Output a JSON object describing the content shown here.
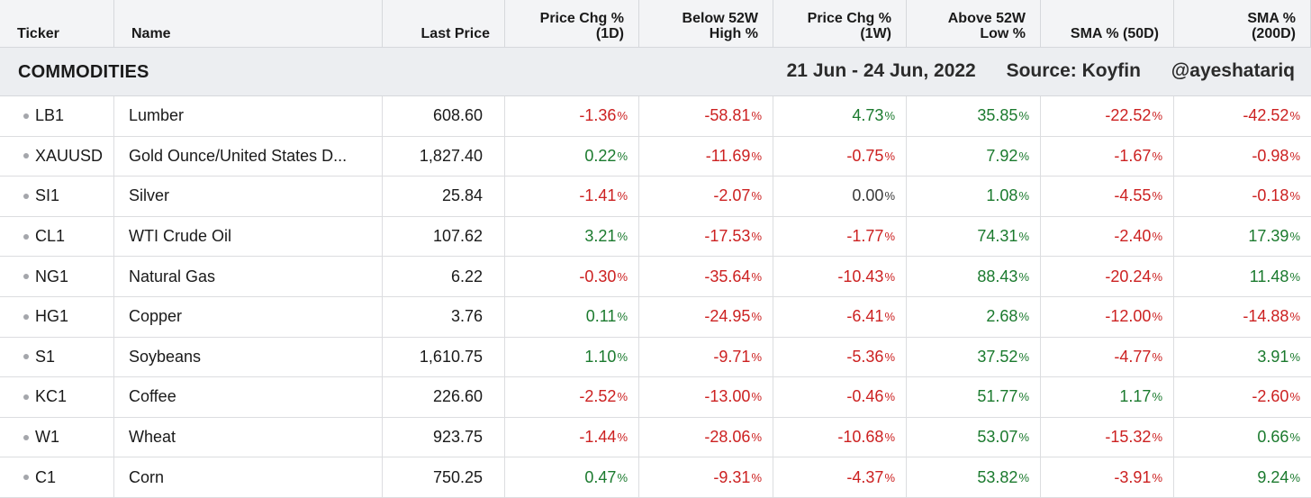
{
  "columns": [
    {
      "label": "Ticker",
      "align": "left"
    },
    {
      "label": "Name",
      "align": "left"
    },
    {
      "label": "Last Price",
      "align": "right"
    },
    {
      "label": "Price Chg %\n(1D)",
      "align": "right"
    },
    {
      "label": "Below 52W\nHigh %",
      "align": "right"
    },
    {
      "label": "Price Chg %\n(1W)",
      "align": "right"
    },
    {
      "label": "Above 52W\nLow %",
      "align": "right"
    },
    {
      "label": "SMA % (50D)",
      "align": "right"
    },
    {
      "label": "SMA %\n(200D)",
      "align": "right"
    }
  ],
  "section": {
    "title": "COMMODITIES",
    "date_range": "21 Jun - 24 Jun, 2022",
    "source": "Source: Koyfin",
    "handle": "@ayeshatariq"
  },
  "percent_unit": "%",
  "colors": {
    "positive": "#1b7a2e",
    "negative": "#cc2121",
    "neutral": "#3a3a3a"
  },
  "rows": [
    {
      "ticker": "LB1",
      "name": "Lumber",
      "last": "608.60",
      "chg1d": "-1.36",
      "below52h": "-58.81",
      "chg1w": "4.73",
      "above52l": "35.85",
      "sma50": "-22.52",
      "sma200": "-42.52"
    },
    {
      "ticker": "XAUUSD",
      "name": "Gold Ounce/United States D...",
      "last": "1,827.40",
      "chg1d": "0.22",
      "below52h": "-11.69",
      "chg1w": "-0.75",
      "above52l": "7.92",
      "sma50": "-1.67",
      "sma200": "-0.98"
    },
    {
      "ticker": "SI1",
      "name": "Silver",
      "last": "25.84",
      "chg1d": "-1.41",
      "below52h": "-2.07",
      "chg1w": "0.00",
      "above52l": "1.08",
      "sma50": "-4.55",
      "sma200": "-0.18"
    },
    {
      "ticker": "CL1",
      "name": "WTI Crude Oil",
      "last": "107.62",
      "chg1d": "3.21",
      "below52h": "-17.53",
      "chg1w": "-1.77",
      "above52l": "74.31",
      "sma50": "-2.40",
      "sma200": "17.39"
    },
    {
      "ticker": "NG1",
      "name": "Natural Gas",
      "last": "6.22",
      "chg1d": "-0.30",
      "below52h": "-35.64",
      "chg1w": "-10.43",
      "above52l": "88.43",
      "sma50": "-20.24",
      "sma200": "11.48"
    },
    {
      "ticker": "HG1",
      "name": "Copper",
      "last": "3.76",
      "chg1d": "0.11",
      "below52h": "-24.95",
      "chg1w": "-6.41",
      "above52l": "2.68",
      "sma50": "-12.00",
      "sma200": "-14.88"
    },
    {
      "ticker": "S1",
      "name": "Soybeans",
      "last": "1,610.75",
      "chg1d": "1.10",
      "below52h": "-9.71",
      "chg1w": "-5.36",
      "above52l": "37.52",
      "sma50": "-4.77",
      "sma200": "3.91"
    },
    {
      "ticker": "KC1",
      "name": "Coffee",
      "last": "226.60",
      "chg1d": "-2.52",
      "below52h": "-13.00",
      "chg1w": "-0.46",
      "above52l": "51.77",
      "sma50": "1.17",
      "sma200": "-2.60"
    },
    {
      "ticker": "W1",
      "name": "Wheat",
      "last": "923.75",
      "chg1d": "-1.44",
      "below52h": "-28.06",
      "chg1w": "-10.68",
      "above52l": "53.07",
      "sma50": "-15.32",
      "sma200": "0.66"
    },
    {
      "ticker": "C1",
      "name": "Corn",
      "last": "750.25",
      "chg1d": "0.47",
      "below52h": "-9.31",
      "chg1w": "-4.37",
      "above52l": "53.82",
      "sma50": "-3.91",
      "sma200": "9.24"
    }
  ]
}
